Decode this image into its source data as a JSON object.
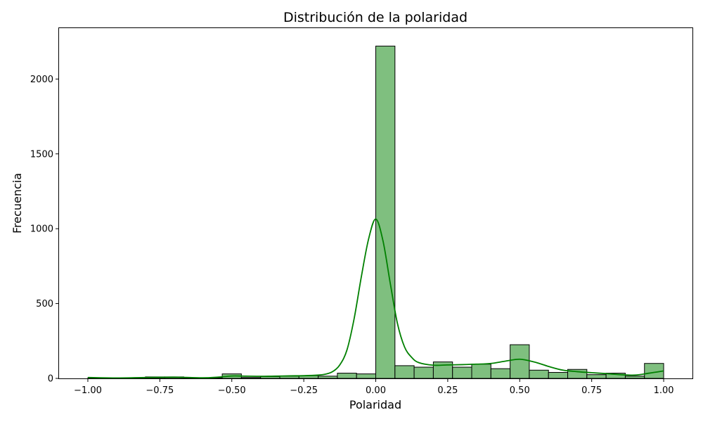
{
  "chart_data": {
    "type": "bar",
    "subtype": "histogram-with-kde",
    "title": "Distribución de la polaridad",
    "xlabel": "Polaridad",
    "ylabel": "Frecuencia",
    "xlim": [
      -1.1,
      1.1
    ],
    "ylim": [
      0,
      2340
    ],
    "xticks": [
      -1.0,
      -0.75,
      -0.5,
      -0.25,
      0.0,
      0.25,
      0.5,
      0.75,
      1.0
    ],
    "xtick_labels": [
      "−1.00",
      "−0.75",
      "−0.50",
      "−0.25",
      "0.00",
      "0.25",
      "0.50",
      "0.75",
      "1.00"
    ],
    "yticks": [
      0,
      500,
      1000,
      1500,
      2000
    ],
    "ytick_labels": [
      "0",
      "500",
      "1000",
      "1500",
      "2000"
    ],
    "grid": false,
    "bin_edges": [
      -1.0,
      -0.9333,
      -0.8667,
      -0.8,
      -0.7333,
      -0.6667,
      -0.6,
      -0.5333,
      -0.4667,
      -0.4,
      -0.3333,
      -0.2667,
      -0.2,
      -0.1333,
      -0.0667,
      0.0,
      0.0667,
      0.1333,
      0.2,
      0.2667,
      0.3333,
      0.4,
      0.4667,
      0.5333,
      0.6,
      0.6667,
      0.7333,
      0.8,
      0.8667,
      0.9333,
      1.0
    ],
    "counts": [
      4,
      2,
      2,
      10,
      10,
      2,
      4,
      30,
      6,
      12,
      15,
      18,
      15,
      35,
      30,
      2220,
      85,
      75,
      110,
      75,
      95,
      65,
      225,
      55,
      40,
      60,
      25,
      35,
      15,
      100
    ],
    "kde": {
      "x": [
        -1.0,
        -0.9,
        -0.8,
        -0.7,
        -0.6,
        -0.55,
        -0.5,
        -0.45,
        -0.4,
        -0.35,
        -0.3,
        -0.25,
        -0.2,
        -0.175,
        -0.15,
        -0.125,
        -0.1,
        -0.075,
        -0.05,
        -0.025,
        0.0,
        0.025,
        0.05,
        0.075,
        0.1,
        0.125,
        0.15,
        0.2,
        0.25,
        0.3,
        0.35,
        0.4,
        0.45,
        0.5,
        0.55,
        0.6,
        0.65,
        0.7,
        0.75,
        0.8,
        0.85,
        0.9,
        0.95,
        1.0
      ],
      "y": [
        6,
        3,
        6,
        8,
        4,
        8,
        16,
        15,
        14,
        15,
        17,
        18,
        22,
        28,
        45,
        90,
        190,
        400,
        680,
        930,
        1065,
        920,
        640,
        370,
        210,
        140,
        105,
        88,
        90,
        92,
        95,
        100,
        115,
        128,
        110,
        80,
        55,
        45,
        38,
        32,
        25,
        22,
        35,
        50
      ]
    },
    "bar_color": "#7fbf7f",
    "bar_edge_color": "#000000",
    "line_color": "#008000"
  }
}
